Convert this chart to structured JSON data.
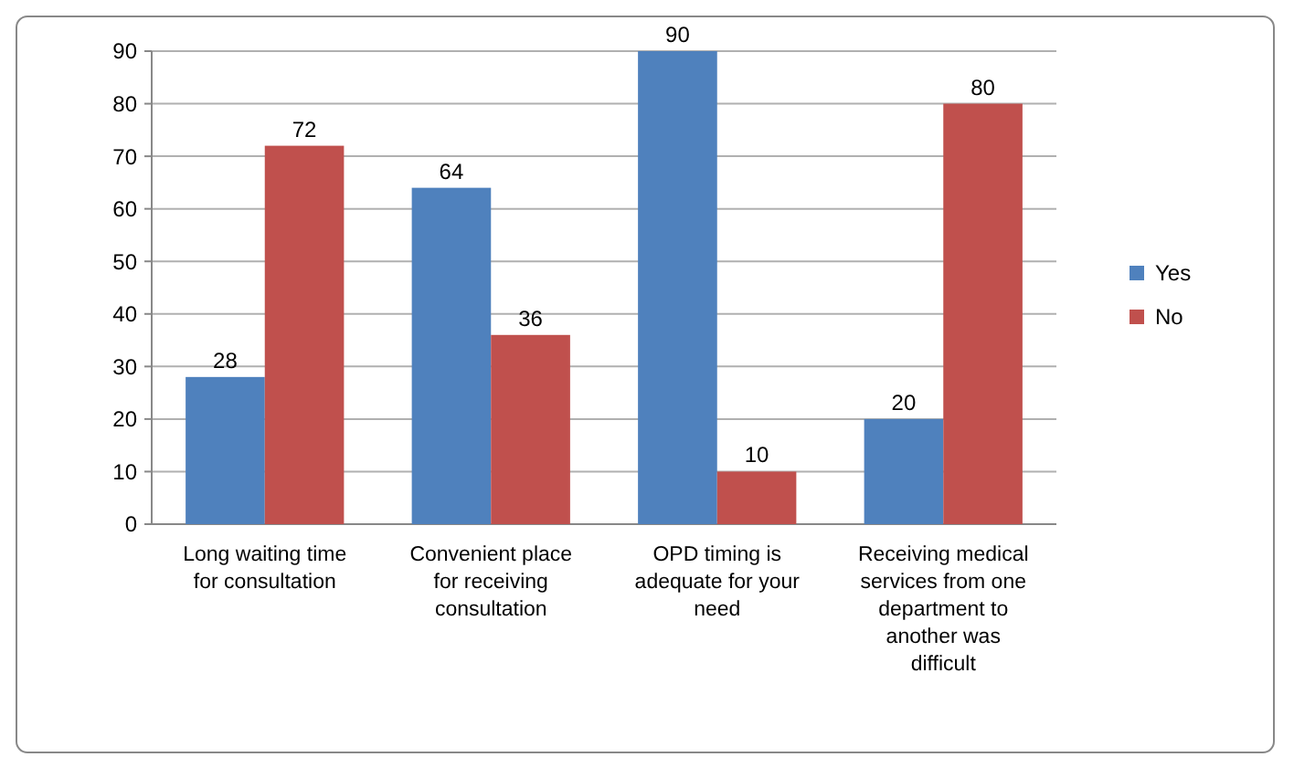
{
  "chart_data": {
    "type": "bar",
    "categories": [
      "Long waiting time for consultation",
      "Convenient place for receiving consultation",
      "OPD timing is adequate for your need",
      "Receiving medical services from one department to another was difficult"
    ],
    "series": [
      {
        "name": "Yes",
        "color": "#4f81bd",
        "values": [
          28,
          64,
          90,
          20
        ]
      },
      {
        "name": "No",
        "color": "#c0504d",
        "values": [
          72,
          36,
          10,
          80
        ]
      }
    ],
    "ylim": [
      0,
      90
    ],
    "yticks": [
      0,
      10,
      20,
      30,
      40,
      50,
      60,
      70,
      80,
      90
    ],
    "grid": "y",
    "legend": "right",
    "data_labels": true
  }
}
